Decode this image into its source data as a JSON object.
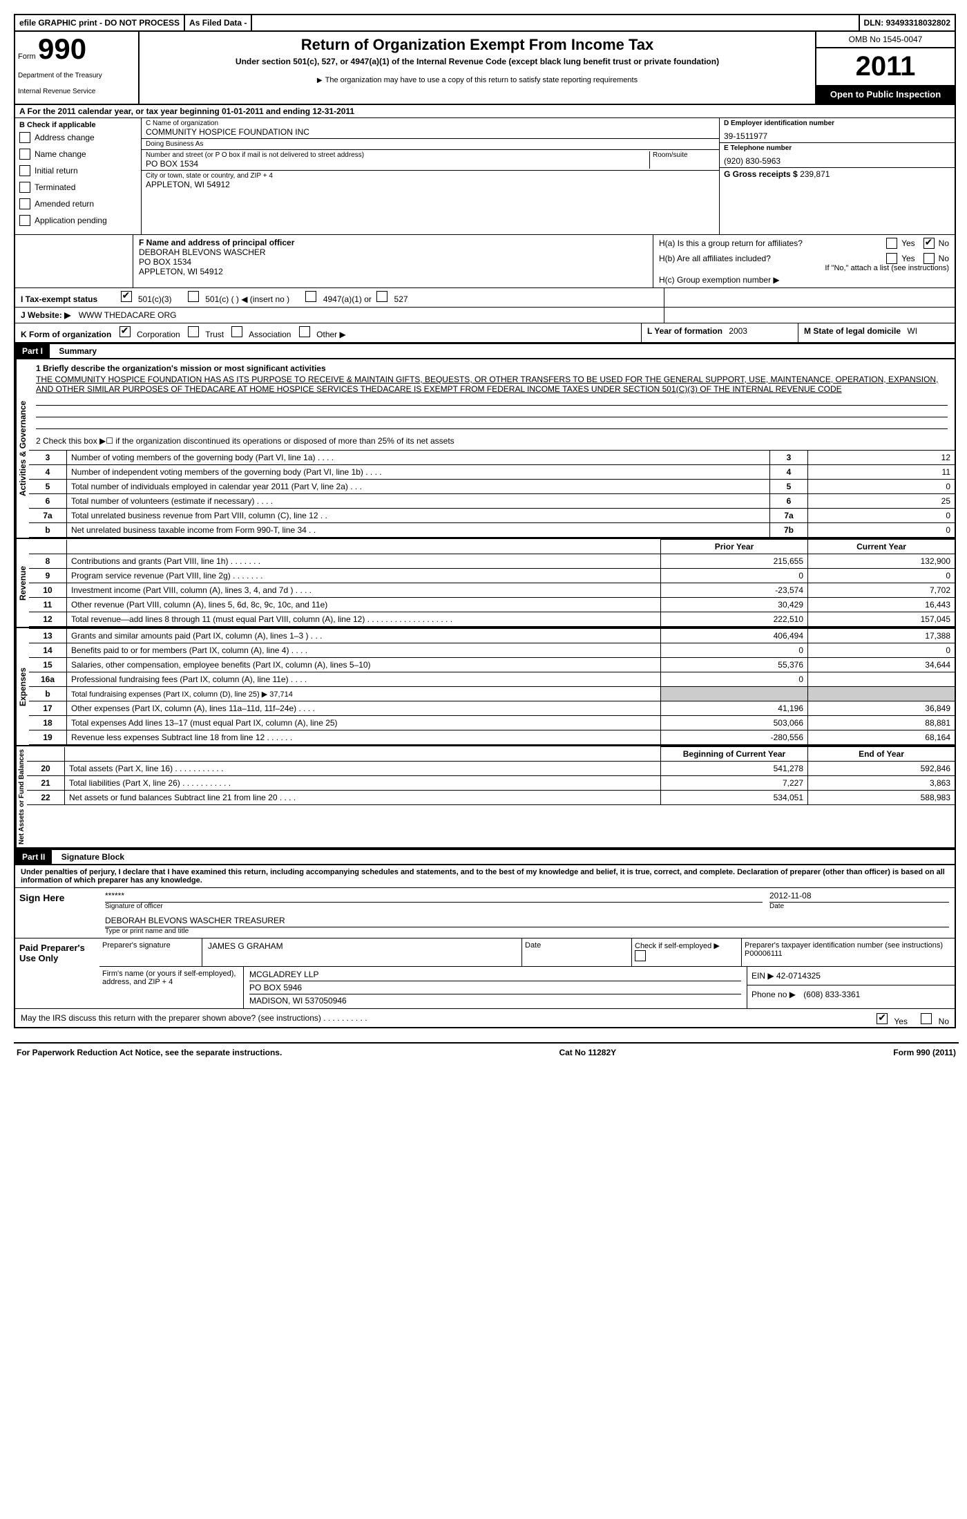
{
  "topbar": {
    "efile": "efile GRAPHIC print - DO NOT PROCESS",
    "asfiled": "As Filed Data -",
    "dln_label": "DLN:",
    "dln": "93493318032802"
  },
  "header": {
    "form_label": "Form",
    "form_no": "990",
    "dept1": "Department of the Treasury",
    "dept2": "Internal Revenue Service",
    "title": "Return of Organization Exempt From Income Tax",
    "subtitle": "Under section 501(c), 527, or 4947(a)(1) of the Internal Revenue Code (except black lung benefit trust or private foundation)",
    "note": "The organization may have to use a copy of this return to satisfy state reporting requirements",
    "omb": "OMB No 1545-0047",
    "year": "2011",
    "open": "Open to Public Inspection"
  },
  "secA": "A For the 2011 calendar year, or tax year beginning 01-01-2011    and ending 12-31-2011",
  "secB": {
    "label": "B Check if applicable",
    "items": [
      "Address change",
      "Name change",
      "Initial return",
      "Terminated",
      "Amended return",
      "Application pending"
    ]
  },
  "secC": {
    "name_lbl": "C Name of organization",
    "name": "COMMUNITY HOSPICE FOUNDATION INC",
    "dba_lbl": "Doing Business As",
    "dba": "",
    "street_lbl": "Number and street (or P O  box if mail is not delivered to street address)",
    "room_lbl": "Room/suite",
    "street": "PO BOX 1534",
    "city_lbl": "City or town, state or country, and ZIP + 4",
    "city": "APPLETON, WI  54912"
  },
  "secD": {
    "lbl": "D Employer identification number",
    "val": "39-1511977"
  },
  "secE": {
    "lbl": "E Telephone number",
    "val": "(920) 830-5963"
  },
  "secG": {
    "lbl": "G Gross receipts $",
    "val": "239,871"
  },
  "secF": {
    "lbl": "F   Name and address of principal officer",
    "name": "DEBORAH BLEVONS WASCHER",
    "addr1": "PO BOX 1534",
    "addr2": "APPLETON, WI  54912"
  },
  "secH": {
    "ha_lbl": "H(a)  Is this a group return for affiliates?",
    "ha_yes": "Yes",
    "ha_no": "No",
    "hb_lbl": "H(b)  Are all affiliates included?",
    "hb_note": "If \"No,\" attach a list  (see instructions)",
    "hc_lbl": "H(c)   Group exemption number ▶"
  },
  "secI": {
    "lbl": "I   Tax-exempt status",
    "o1": "501(c)(3)",
    "o2": "501(c) (  ) ◀ (insert no )",
    "o3": "4947(a)(1) or",
    "o4": "527"
  },
  "secJ": {
    "lbl": "J   Website: ▶",
    "val": "WWW THEDACARE ORG"
  },
  "secK": {
    "lbl": "K Form of organization",
    "opts": [
      "Corporation",
      "Trust",
      "Association",
      "Other ▶"
    ]
  },
  "secL": {
    "lbl": "L Year of formation",
    "val": "2003"
  },
  "secM": {
    "lbl": "M State of legal domicile",
    "val": "WI"
  },
  "partI": {
    "hdr": "Part I",
    "title": "Summary"
  },
  "mission_lbl": "1   Briefly describe the organization's mission or most significant activities",
  "mission": "THE COMMUNITY HOSPICE FOUNDATION HAS AS ITS PURPOSE TO RECEIVE & MAINTAIN GIFTS, BEQUESTS, OR OTHER TRANSFERS TO BE USED FOR THE GENERAL SUPPORT, USE, MAINTENANCE, OPERATION, EXPANSION, AND OTHER SIMILAR PURPOSES OF THEDACARE AT HOME HOSPICE SERVICES  THEDACARE IS EXEMPT FROM FEDERAL INCOME TAXES UNDER SECTION 501(C)(3) OF THE INTERNAL REVENUE CODE",
  "line2": "2   Check this box ▶☐ if the organization discontinued its operations or disposed of more than 25% of its net assets",
  "govLines": [
    {
      "n": "3",
      "t": "Number of voting members of the governing body (Part VI, line 1a)   .   .   .   .",
      "k": "3",
      "v": "12"
    },
    {
      "n": "4",
      "t": "Number of independent voting members of the governing body (Part VI, line 1b)   .   .   .   .",
      "k": "4",
      "v": "11"
    },
    {
      "n": "5",
      "t": "Total number of individuals employed in calendar year 2011 (Part V, line 2a)   .   .   .",
      "k": "5",
      "v": "0"
    },
    {
      "n": "6",
      "t": "Total number of volunteers (estimate if necessary)   .   .   .   .",
      "k": "6",
      "v": "25"
    },
    {
      "n": "7a",
      "t": "Total unrelated business revenue from Part VIII, column (C), line 12   .   .",
      "k": "7a",
      "v": "0"
    },
    {
      "n": "b",
      "t": "Net unrelated business taxable income from Form 990-T, line 34   .   .",
      "k": "7b",
      "v": "0"
    }
  ],
  "priorYear": "Prior Year",
  "currYear": "Current Year",
  "revenue": [
    {
      "n": "8",
      "t": "Contributions and grants (Part VIII, line 1h)   .   .   .   .   .   .   .",
      "p": "215,655",
      "c": "132,900"
    },
    {
      "n": "9",
      "t": "Program service revenue (Part VIII, line 2g)   .   .   .   .   .   .   .",
      "p": "0",
      "c": "0"
    },
    {
      "n": "10",
      "t": "Investment income (Part VIII, column (A), lines 3, 4, and 7d )   .   .   .   .",
      "p": "-23,574",
      "c": "7,702"
    },
    {
      "n": "11",
      "t": "Other revenue (Part VIII, column (A), lines 5, 6d, 8c, 9c, 10c, and 11e)",
      "p": "30,429",
      "c": "16,443"
    },
    {
      "n": "12",
      "t": "Total revenue—add lines 8 through 11 (must equal Part VIII, column (A), line 12)   .   .   .   .   .   .   .   .   .   .   .   .   .   .   .   .   .   .   .",
      "p": "222,510",
      "c": "157,045"
    }
  ],
  "expenses": [
    {
      "n": "13",
      "t": "Grants and similar amounts paid (Part IX, column (A), lines 1–3 )   .   .   .",
      "p": "406,494",
      "c": "17,388"
    },
    {
      "n": "14",
      "t": "Benefits paid to or for members (Part IX, column (A), line 4)   .   .   .   .",
      "p": "0",
      "c": "0"
    },
    {
      "n": "15",
      "t": "Salaries, other compensation, employee benefits (Part IX, column (A), lines 5–10)",
      "p": "55,376",
      "c": "34,644"
    },
    {
      "n": "16a",
      "t": "Professional fundraising fees (Part IX, column (A), line 11e)   .   .   .   .",
      "p": "0",
      "c": ""
    },
    {
      "n": "b",
      "t": "Total fundraising expenses (Part IX, column (D), line 25) ▶ 37,714",
      "p": "",
      "c": "",
      "span": true
    },
    {
      "n": "17",
      "t": "Other expenses (Part IX, column (A), lines 11a–11d, 11f–24e)   .   .   .   .",
      "p": "41,196",
      "c": "36,849"
    },
    {
      "n": "18",
      "t": "Total expenses  Add lines 13–17 (must equal Part IX, column (A), line 25)",
      "p": "503,066",
      "c": "88,881"
    },
    {
      "n": "19",
      "t": "Revenue less expenses  Subtract line 18 from line 12   .   .   .   .   .   .",
      "p": "-280,556",
      "c": "68,164"
    }
  ],
  "begYear": "Beginning of Current Year",
  "endYear": "End of Year",
  "netassets": [
    {
      "n": "20",
      "t": "Total assets (Part X, line 16)   .   .   .   .   .   .   .   .   .   .   .",
      "p": "541,278",
      "c": "592,846"
    },
    {
      "n": "21",
      "t": "Total liabilities (Part X, line 26)   .   .   .   .   .   .   .   .   .   .   .",
      "p": "7,227",
      "c": "3,863"
    },
    {
      "n": "22",
      "t": "Net assets or fund balances  Subtract line 21 from line 20   .   .   .   .",
      "p": "534,051",
      "c": "588,983"
    }
  ],
  "partII": {
    "hdr": "Part II",
    "title": "Signature Block"
  },
  "perjury": "Under penalties of perjury, I declare that I have examined this return, including accompanying schedules and statements, and to the best of my knowledge and belief, it is true, correct, and complete. Declaration of preparer (other than officer) is based on all information of which preparer has any knowledge.",
  "sign": {
    "here": "Sign Here",
    "stars": "******",
    "sig_lbl": "Signature of officer",
    "date_lbl": "Date",
    "date": "2012-11-08",
    "name": "DEBORAH BLEVONS WASCHER TREASURER",
    "name_lbl": "Type or print name and title"
  },
  "paid": {
    "lbl": "Paid Preparer's Use Only",
    "prep_sig_lbl": "Preparer's signature",
    "prep_name": "JAMES G GRAHAM",
    "date_lbl": "Date",
    "self_lbl": "Check if self-employed ▶",
    "ptin_lbl": "Preparer's taxpayer identification number (see instructions)",
    "ptin": "P00006111",
    "firm_lbl": "Firm's name (or yours if self-employed), address, and ZIP + 4",
    "firm": "MCGLADREY LLP",
    "firm_addr1": "PO BOX 5946",
    "firm_addr2": "MADISON, WI  537050946",
    "ein_lbl": "EIN  ▶",
    "ein": "42-0714325",
    "phone_lbl": "Phone no   ▶",
    "phone": "(608) 833-3361"
  },
  "irs_q": "May the IRS discuss this return with the preparer shown above? (see instructions)   .   .   .   .   .   .   .   .   .   .",
  "yes": "Yes",
  "no": "No",
  "footer": {
    "pra": "For Paperwork Reduction Act Notice, see the separate instructions.",
    "cat": "Cat No 11282Y",
    "form": "Form 990 (2011)"
  },
  "tabs": {
    "gov": "Activities & Governance",
    "rev": "Revenue",
    "exp": "Expenses",
    "net": "Net Assets or Fund Balances"
  }
}
